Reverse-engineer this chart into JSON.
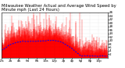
{
  "title": "Milwaukee Weather Actual and Average Wind Speed by Minute mph (Last 24 Hours)",
  "bg_color": "#ffffff",
  "plot_bg_color": "#ffffff",
  "grid_color": "#c8c8c8",
  "actual_color": "#ff0000",
  "avg_color": "#0000ff",
  "n_points": 1440,
  "ylim": [
    0,
    26
  ],
  "yticks": [
    2,
    4,
    6,
    8,
    10,
    12,
    14,
    16,
    18,
    20,
    22,
    24,
    26
  ],
  "title_fontsize": 3.8,
  "tick_fontsize": 3.0,
  "x_tick_hours": [
    0,
    2,
    4,
    6,
    8,
    10,
    12,
    14,
    16,
    18,
    20,
    22
  ],
  "x_tick_labels": [
    "12a",
    "2a",
    "4a",
    "6a",
    "8a",
    "10a",
    "12p",
    "2p",
    "4p",
    "6p",
    "8p",
    "10p"
  ]
}
